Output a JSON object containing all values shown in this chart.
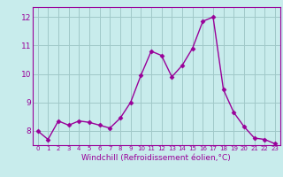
{
  "x": [
    0,
    1,
    2,
    3,
    4,
    5,
    6,
    7,
    8,
    9,
    10,
    11,
    12,
    13,
    14,
    15,
    16,
    17,
    18,
    19,
    20,
    21,
    22,
    23
  ],
  "y": [
    8.0,
    7.7,
    8.35,
    8.2,
    8.35,
    8.3,
    8.2,
    8.1,
    8.45,
    9.0,
    9.95,
    10.8,
    10.65,
    9.9,
    10.3,
    10.9,
    11.85,
    12.0,
    9.45,
    8.65,
    8.15,
    7.75,
    7.7,
    7.55
  ],
  "line_color": "#990099",
  "marker": "D",
  "marker_size": 2.5,
  "bg_color": "#c8ecec",
  "grid_color": "#a0c8c8",
  "xlabel": "Windchill (Refroidissement éolien,°C)",
  "xlabel_color": "#990099",
  "tick_color": "#990099",
  "ylim": [
    7.5,
    12.35
  ],
  "xlim": [
    -0.5,
    23.5
  ],
  "yticks": [
    8,
    9,
    10,
    11,
    12
  ],
  "xticks": [
    0,
    1,
    2,
    3,
    4,
    5,
    6,
    7,
    8,
    9,
    10,
    11,
    12,
    13,
    14,
    15,
    16,
    17,
    18,
    19,
    20,
    21,
    22,
    23
  ],
  "xtick_labels": [
    "0",
    "1",
    "2",
    "3",
    "4",
    "5",
    "6",
    "7",
    "8",
    "9",
    "10",
    "11",
    "12",
    "13",
    "14",
    "15",
    "16",
    "17",
    "18",
    "19",
    "20",
    "21",
    "22",
    "23"
  ],
  "ytick_labels": [
    "8",
    "9",
    "10",
    "11",
    "12"
  ]
}
